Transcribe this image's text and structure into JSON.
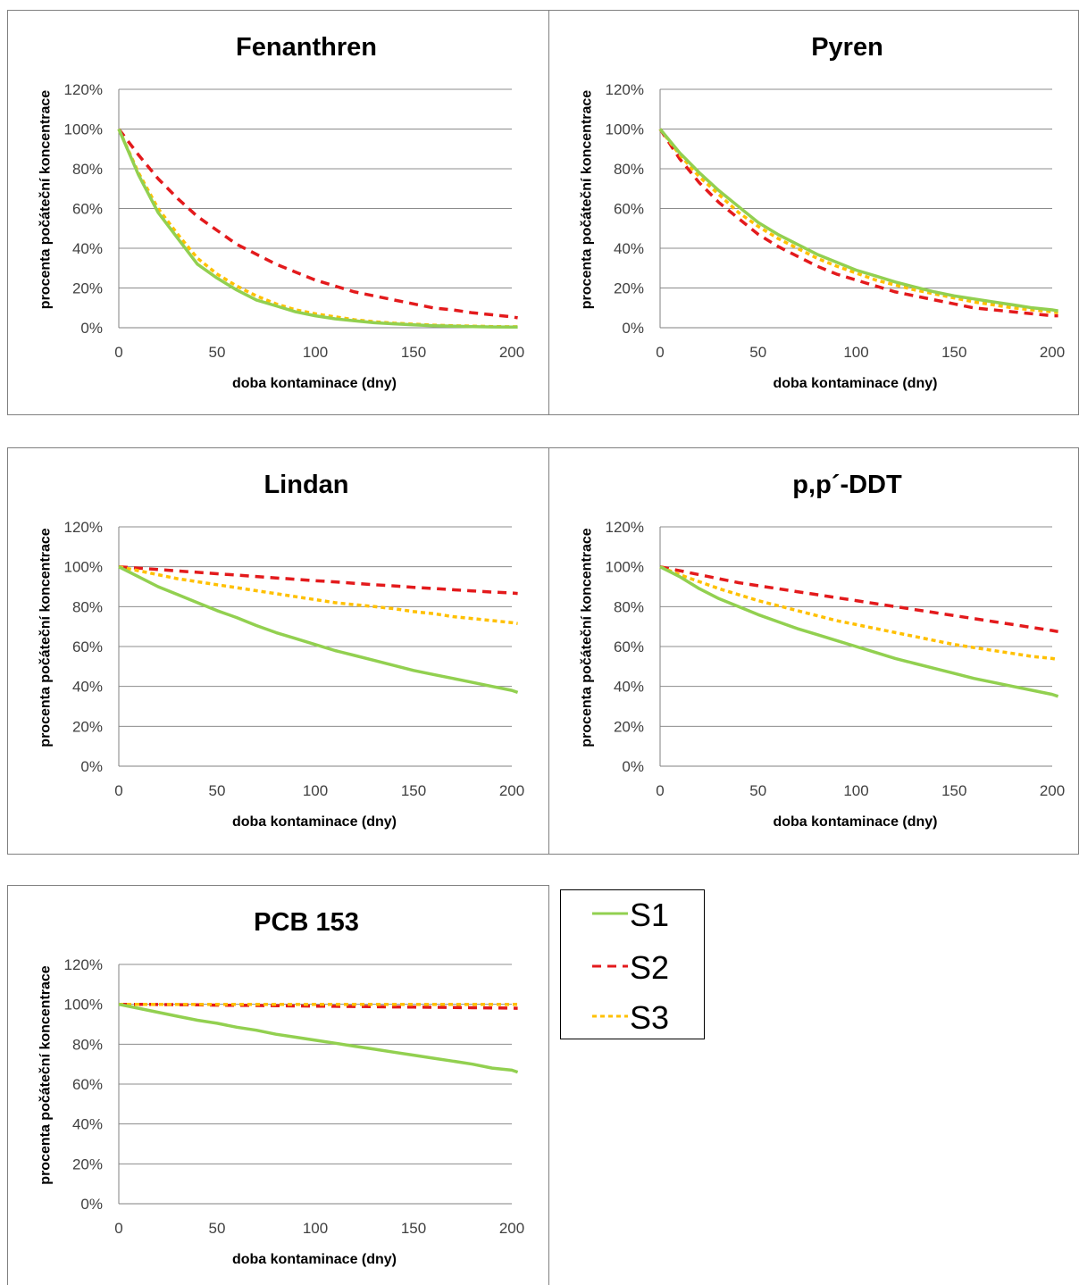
{
  "legend": {
    "items": [
      {
        "label": "S1",
        "color": "#92D050",
        "dash": "solid"
      },
      {
        "label": "S2",
        "color": "#E31A1C",
        "dash": "dashed"
      },
      {
        "label": "S3",
        "color": "#FFC000",
        "dash": "dotted"
      }
    ]
  },
  "chart_data": [
    {
      "type": "line",
      "title": "Fenanthren",
      "xlabel": "doba kontaminace (dny)",
      "ylabel": "procenta počáteční koncentrace",
      "xlim": [
        0,
        200
      ],
      "ylim": [
        0,
        120
      ],
      "xticks": [
        "0",
        "50",
        "100",
        "150",
        "200"
      ],
      "yticks": [
        "0%",
        "20%",
        "40%",
        "60%",
        "80%",
        "100%",
        "120%"
      ],
      "grid": true,
      "x": [
        0,
        10,
        20,
        30,
        40,
        50,
        60,
        70,
        80,
        90,
        100,
        110,
        120,
        130,
        140,
        150,
        160,
        170,
        180,
        190,
        200,
        203
      ],
      "series": [
        {
          "name": "S1",
          "values": [
            100,
            77,
            58,
            45,
            32,
            25,
            19,
            14,
            11,
            8,
            6,
            4.5,
            3.5,
            2.5,
            2,
            1.5,
            1,
            0.8,
            0.6,
            0.4,
            0.3,
            0.3
          ]
        },
        {
          "name": "S2",
          "values": [
            100,
            87,
            75,
            65,
            56,
            49,
            42,
            37,
            32,
            28,
            24,
            21,
            18,
            16,
            14,
            12,
            10,
            9,
            7.5,
            6.5,
            5.5,
            5
          ]
        },
        {
          "name": "S3",
          "values": [
            100,
            78,
            60,
            47,
            35,
            27,
            21,
            16,
            12,
            9,
            7,
            5.5,
            4,
            3,
            2.3,
            1.8,
            1.3,
            1,
            0.8,
            0.6,
            0.5,
            0.5
          ]
        }
      ]
    },
    {
      "type": "line",
      "title": "Pyren",
      "xlabel": "doba kontaminace (dny)",
      "ylabel": "procenta počáteční koncentrace",
      "xlim": [
        0,
        200
      ],
      "ylim": [
        0,
        120
      ],
      "xticks": [
        "0",
        "50",
        "100",
        "150",
        "200"
      ],
      "yticks": [
        "0%",
        "20%",
        "40%",
        "60%",
        "80%",
        "100%",
        "120%"
      ],
      "grid": true,
      "x": [
        0,
        10,
        20,
        30,
        40,
        50,
        60,
        70,
        80,
        90,
        100,
        110,
        120,
        130,
        140,
        150,
        160,
        170,
        180,
        190,
        200,
        203
      ],
      "series": [
        {
          "name": "S1",
          "values": [
            100,
            88,
            78,
            69,
            61,
            53,
            47,
            42,
            37,
            33,
            29,
            26,
            23,
            20.5,
            18,
            16,
            14.5,
            13,
            11.5,
            10,
            9,
            8.5
          ]
        },
        {
          "name": "S2",
          "values": [
            100,
            85,
            73,
            63,
            55,
            47,
            41,
            36,
            31,
            27,
            24,
            21,
            18,
            16,
            14,
            12,
            10,
            9,
            8,
            7,
            6,
            6
          ]
        },
        {
          "name": "S3",
          "values": [
            100,
            87,
            76,
            67,
            58,
            51,
            45,
            40,
            35,
            31,
            27.5,
            24,
            21.5,
            19,
            17,
            15,
            13,
            11.5,
            10,
            9,
            8,
            7.5
          ]
        }
      ]
    },
    {
      "type": "line",
      "title": "Lindan",
      "xlabel": "doba kontaminace (dny)",
      "ylabel": "procenta počáteční koncentrace",
      "xlim": [
        0,
        200
      ],
      "ylim": [
        0,
        120
      ],
      "xticks": [
        "0",
        "50",
        "100",
        "150",
        "200"
      ],
      "yticks": [
        "0%",
        "20%",
        "40%",
        "60%",
        "80%",
        "100%",
        "120%"
      ],
      "grid": true,
      "x": [
        0,
        10,
        20,
        30,
        40,
        50,
        60,
        70,
        80,
        90,
        100,
        110,
        120,
        130,
        140,
        150,
        160,
        170,
        180,
        190,
        200,
        203
      ],
      "series": [
        {
          "name": "S1",
          "values": [
            100,
            95,
            90,
            86,
            82,
            78,
            74.5,
            70.5,
            67,
            64,
            61,
            58,
            55.5,
            53,
            50.5,
            48,
            46,
            44,
            42,
            40,
            38,
            37
          ]
        },
        {
          "name": "S2",
          "values": [
            100,
            99.3,
            98.6,
            97.9,
            97.2,
            96.5,
            95.8,
            95.1,
            94.4,
            93.7,
            93,
            92.4,
            91.7,
            91,
            90.4,
            89.7,
            89.1,
            88.5,
            87.9,
            87.3,
            86.8,
            86.6
          ]
        },
        {
          "name": "S3",
          "values": [
            100,
            98,
            96,
            94,
            92.5,
            91,
            89.5,
            88,
            86.5,
            85,
            83.5,
            82,
            81,
            80,
            79,
            77.5,
            76.5,
            75,
            74,
            73,
            72,
            71.5
          ]
        }
      ]
    },
    {
      "type": "line",
      "title": "p,p´-DDT",
      "xlabel": "doba kontaminace (dny)",
      "ylabel": "procenta počáteční koncentrace",
      "xlim": [
        0,
        200
      ],
      "ylim": [
        0,
        120
      ],
      "xticks": [
        "0",
        "50",
        "100",
        "150",
        "200"
      ],
      "yticks": [
        "0%",
        "20%",
        "40%",
        "60%",
        "80%",
        "100%",
        "120%"
      ],
      "grid": true,
      "x": [
        0,
        10,
        20,
        30,
        40,
        50,
        60,
        70,
        80,
        90,
        100,
        110,
        120,
        130,
        140,
        150,
        160,
        170,
        180,
        190,
        200,
        203
      ],
      "series": [
        {
          "name": "S1",
          "values": [
            100,
            95,
            89,
            84,
            80,
            76,
            72.5,
            69,
            66,
            63,
            60,
            57,
            54,
            51.5,
            49,
            46.5,
            44,
            42,
            40,
            38,
            36,
            35
          ]
        },
        {
          "name": "S2",
          "values": [
            100,
            98,
            96,
            94,
            92,
            90.5,
            89,
            87.5,
            86,
            84.5,
            83,
            81.5,
            80,
            78.5,
            77,
            75.5,
            74,
            72.5,
            71,
            69.5,
            68,
            67.5
          ]
        },
        {
          "name": "S3",
          "values": [
            100,
            96,
            92.5,
            89,
            86,
            83,
            80.5,
            78,
            75.5,
            73,
            71,
            69,
            67,
            65,
            63,
            61,
            59.5,
            58,
            56.5,
            55,
            54,
            53.5
          ]
        }
      ]
    },
    {
      "type": "line",
      "title": "PCB 153",
      "xlabel": "doba kontaminace (dny)",
      "ylabel": "procenta počáteční koncentrace",
      "xlim": [
        0,
        200
      ],
      "ylim": [
        0,
        120
      ],
      "xticks": [
        "0",
        "50",
        "100",
        "150",
        "200"
      ],
      "yticks": [
        "0%",
        "20%",
        "40%",
        "60%",
        "80%",
        "100%",
        "120%"
      ],
      "grid": true,
      "x": [
        0,
        10,
        20,
        30,
        40,
        50,
        60,
        70,
        80,
        90,
        100,
        110,
        120,
        130,
        140,
        150,
        160,
        170,
        180,
        190,
        200,
        203
      ],
      "series": [
        {
          "name": "S1",
          "values": [
            100,
            98,
            96,
            94,
            92,
            90.5,
            88.5,
            87,
            85,
            83.5,
            82,
            80.5,
            79,
            77.5,
            76,
            74.5,
            73,
            71.5,
            70,
            68,
            67,
            66
          ]
        },
        {
          "name": "S2",
          "values": [
            100,
            100,
            99.9,
            99.8,
            99.7,
            99.6,
            99.5,
            99.4,
            99.3,
            99.2,
            99.1,
            99,
            98.9,
            98.8,
            98.7,
            98.6,
            98.5,
            98.4,
            98.3,
            98.2,
            98.1,
            98
          ]
        },
        {
          "name": "S3",
          "values": [
            100,
            100,
            100,
            100,
            100,
            100,
            100,
            100,
            100,
            100,
            100,
            100,
            100,
            100,
            100,
            100,
            100,
            100,
            100,
            100,
            100,
            100
          ]
        }
      ]
    }
  ]
}
